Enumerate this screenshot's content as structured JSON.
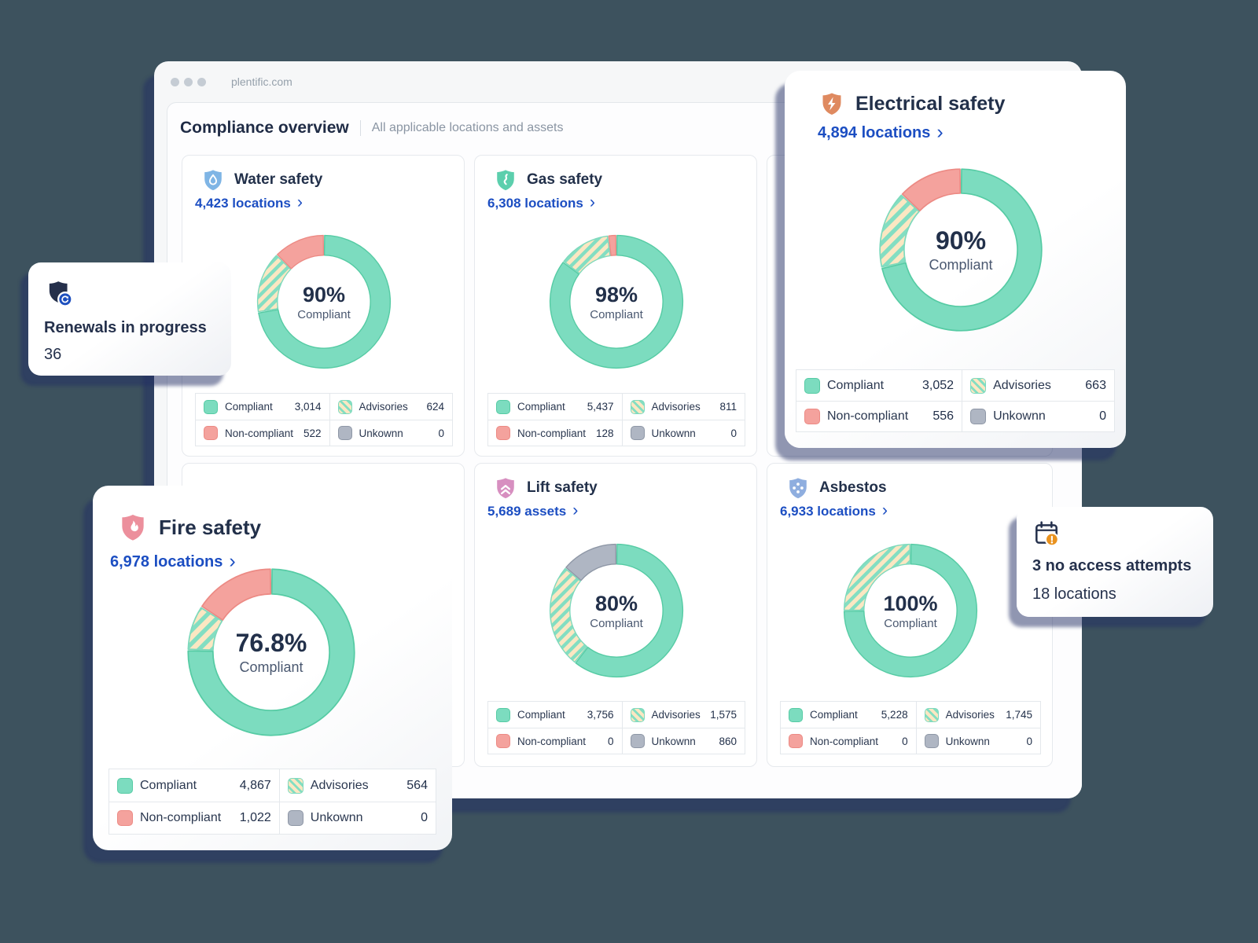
{
  "window": {
    "url": "plentific.com"
  },
  "header": {
    "title": "Compliance overview",
    "subtitle": "All applicable locations and assets"
  },
  "icons": {
    "chevron": "›"
  },
  "legend_labels": {
    "compliant": "Compliant",
    "advisories": "Advisories",
    "non_compliant": "Non-compliant",
    "unknown": "Unkownn"
  },
  "colors": {
    "background": "#3D525E",
    "link_blue": "#1C4EC2",
    "navy_text": "#22304A",
    "compliant": "#7CDCBF",
    "compliant_border": "#56CBA4",
    "non_compliant": "#F4A29D",
    "non_compliant_border": "#EC8A84",
    "advisories_bg": "#FBE7C2",
    "advisories_stripe": "#83DEC2",
    "advisories_border": "#7ED9BC",
    "unknown": "#AFB6C3",
    "unknown_border": "#8E97A6",
    "water_shield": "#7FB5E5",
    "gas_shield": "#5CCFAD",
    "electrical_shield": "#DF8A60",
    "fire_shield": "#EC8F9C",
    "lift_shield": "#D78FC0",
    "asbestos_shield": "#8FAEDF",
    "alert_orange": "#E9921E",
    "badge_blue": "#1D4FBE"
  },
  "cards": {
    "water": {
      "title": "Water safety",
      "link": "4,423 locations",
      "pct": "90%",
      "pct_label": "Compliant",
      "legend": {
        "compliant": "3,014",
        "advisories": "624",
        "non_compliant": "522",
        "unknown": "0"
      }
    },
    "gas": {
      "title": "Gas safety",
      "link": "6,308 locations",
      "pct": "98%",
      "pct_label": "Compliant",
      "legend": {
        "compliant": "5,437",
        "advisories": "811",
        "non_compliant": "128",
        "unknown": "0"
      }
    },
    "electrical": {
      "title": "Electrical safety",
      "link": "4,894 locations",
      "pct": "90%",
      "pct_label": "Compliant",
      "legend": {
        "compliant": "3,052",
        "advisories": "663",
        "non_compliant": "556",
        "unknown": "0"
      }
    },
    "fire": {
      "title": "Fire safety",
      "link": "6,978 locations",
      "pct": "76.8%",
      "pct_label": "Compliant",
      "legend": {
        "compliant": "4,867",
        "advisories": "564",
        "non_compliant": "1,022",
        "unknown": "0"
      }
    },
    "lift": {
      "title": "Lift safety",
      "link": "5,689 assets",
      "pct": "80%",
      "pct_label": "Compliant",
      "legend": {
        "compliant": "3,756",
        "advisories": "1,575",
        "non_compliant": "0",
        "unknown": "860"
      }
    },
    "asbestos": {
      "title": "Asbestos",
      "link": "6,933 locations",
      "pct": "100%",
      "pct_label": "Compliant",
      "legend": {
        "compliant": "5,228",
        "advisories": "1,745",
        "non_compliant": "0",
        "unknown": "0"
      }
    }
  },
  "badges": {
    "renewals": {
      "title": "Renewals in progress",
      "value": "36"
    },
    "no_access": {
      "title": "3 no access attempts",
      "subtitle": "18 locations"
    }
  },
  "chart_data": [
    {
      "type": "pie",
      "id": "water",
      "title": "Water safety",
      "center_value": "90%",
      "center_label": "Compliant",
      "segments": [
        {
          "key": "compliant",
          "label": "Compliant",
          "value": 3014
        },
        {
          "key": "advisories",
          "label": "Advisories",
          "value": 624
        },
        {
          "key": "non_compliant",
          "label": "Non-compliant",
          "value": 522
        },
        {
          "key": "unknown",
          "label": "Unkownn",
          "value": 0
        }
      ]
    },
    {
      "type": "pie",
      "id": "gas",
      "title": "Gas safety",
      "center_value": "98%",
      "center_label": "Compliant",
      "segments": [
        {
          "key": "compliant",
          "label": "Compliant",
          "value": 5437
        },
        {
          "key": "advisories",
          "label": "Advisories",
          "value": 811
        },
        {
          "key": "non_compliant",
          "label": "Non-compliant",
          "value": 128
        },
        {
          "key": "unknown",
          "label": "Unkownn",
          "value": 0
        }
      ]
    },
    {
      "type": "pie",
      "id": "electrical",
      "title": "Electrical safety",
      "center_value": "90%",
      "center_label": "Compliant",
      "segments": [
        {
          "key": "compliant",
          "label": "Compliant",
          "value": 3052
        },
        {
          "key": "advisories",
          "label": "Advisories",
          "value": 663
        },
        {
          "key": "non_compliant",
          "label": "Non-compliant",
          "value": 556
        },
        {
          "key": "unknown",
          "label": "Unkownn",
          "value": 0
        }
      ]
    },
    {
      "type": "pie",
      "id": "fire",
      "title": "Fire safety",
      "center_value": "76.8%",
      "center_label": "Compliant",
      "segments": [
        {
          "key": "compliant",
          "label": "Compliant",
          "value": 4867
        },
        {
          "key": "advisories",
          "label": "Advisories",
          "value": 564
        },
        {
          "key": "non_compliant",
          "label": "Non-compliant",
          "value": 1022
        },
        {
          "key": "unknown",
          "label": "Unkownn",
          "value": 0
        }
      ]
    },
    {
      "type": "pie",
      "id": "lift",
      "title": "Lift safety",
      "center_value": "80%",
      "center_label": "Compliant",
      "segments": [
        {
          "key": "compliant",
          "label": "Compliant",
          "value": 3756
        },
        {
          "key": "advisories",
          "label": "Advisories",
          "value": 1575
        },
        {
          "key": "non_compliant",
          "label": "Non-compliant",
          "value": 0
        },
        {
          "key": "unknown",
          "label": "Unkownn",
          "value": 860
        }
      ]
    },
    {
      "type": "pie",
      "id": "asbestos",
      "title": "Asbestos",
      "center_value": "100%",
      "center_label": "Compliant",
      "segments": [
        {
          "key": "compliant",
          "label": "Compliant",
          "value": 5228
        },
        {
          "key": "advisories",
          "label": "Advisories",
          "value": 1745
        },
        {
          "key": "non_compliant",
          "label": "Non-compliant",
          "value": 0
        },
        {
          "key": "unknown",
          "label": "Unkownn",
          "value": 0
        }
      ]
    }
  ]
}
